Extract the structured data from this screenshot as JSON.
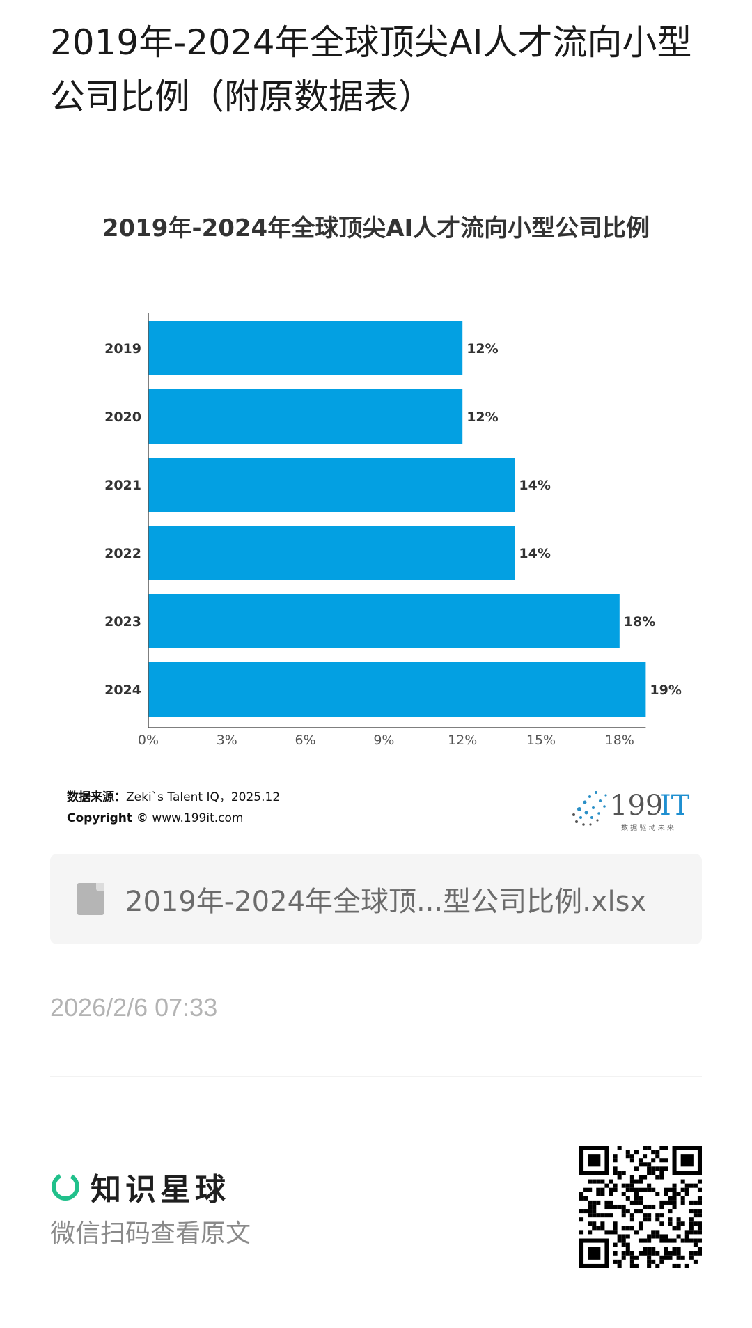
{
  "page": {
    "title": "2019年-2024年全球顶尖AI人才流向小型公司比例（附原数据表）",
    "source_label": "数据来源：",
    "source_text": "Zeki`s Talent IQ，2025.12",
    "copyright_label": "Copyright ©",
    "copyright_text": "www.199it.com",
    "brand_name": "199IT",
    "brand_tagline": "数 据 驱 动 未 来",
    "attachment_name": "2019年-2024年全球顶...型公司比例.xlsx",
    "timestamp": "2026/2/6 07:33",
    "footer_logo_text": "知识星球",
    "footer_hint": "微信扫码查看原文"
  },
  "chart_data": {
    "type": "bar",
    "orientation": "horizontal",
    "title": "2019年-2024年全球顶尖AI人才流向小型公司比例",
    "categories": [
      "2019",
      "2020",
      "2021",
      "2022",
      "2023",
      "2024"
    ],
    "values": [
      12,
      12,
      14,
      14,
      18,
      19
    ],
    "value_labels": [
      "12%",
      "12%",
      "14%",
      "14%",
      "18%",
      "19%"
    ],
    "x_ticks": [
      "0%",
      "3%",
      "6%",
      "9%",
      "12%",
      "15%",
      "18%"
    ],
    "xlim": [
      0,
      19
    ],
    "xlabel": "",
    "ylabel": "",
    "grid": false,
    "bar_color": "#03a0e2"
  },
  "colors": {
    "accent": "#03a0e2",
    "zsxq_green": "#21c08b"
  }
}
